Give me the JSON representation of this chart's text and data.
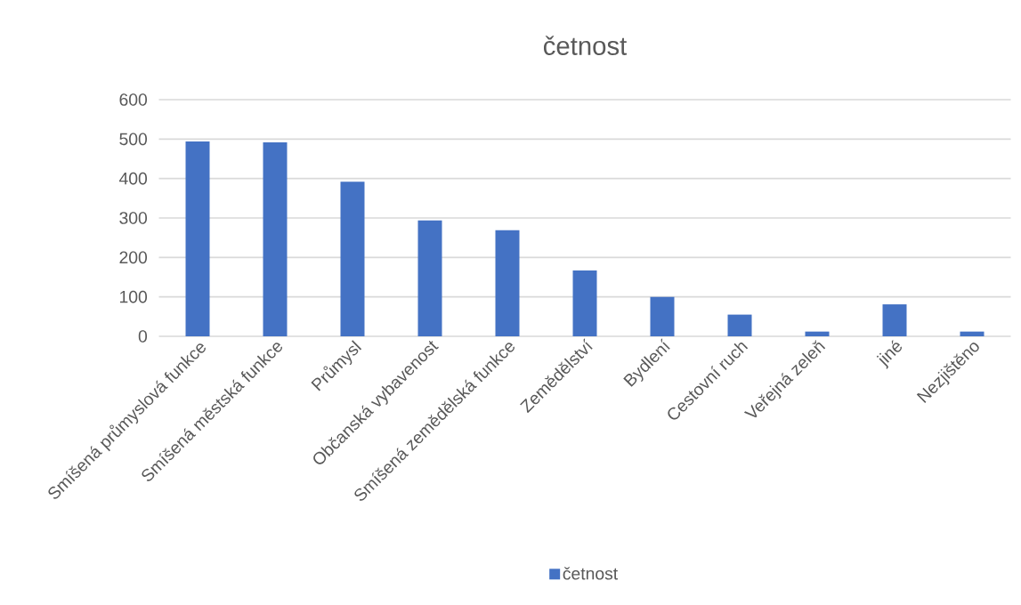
{
  "chart_data": {
    "type": "bar",
    "title": "četnost",
    "categories": [
      "Smíšená průmyslová funkce",
      "Smíšená městská funkce",
      "Průmysl",
      "Občanská vybavenost",
      "Smíšená zemědělská funkce",
      "Zemědělství",
      "Bydlení",
      "Cestovní ruch",
      "Veřejná zeleň",
      "jiné",
      "Nezjištěno"
    ],
    "series": [
      {
        "name": "četnost",
        "color": "#4472c4",
        "values": [
          494,
          492,
          392,
          294,
          269,
          167,
          100,
          55,
          12,
          81,
          12
        ]
      }
    ],
    "ylim": [
      0,
      600
    ],
    "yticks": [
      0,
      100,
      200,
      300,
      400,
      500,
      600
    ],
    "grid": "y",
    "legend": "bottom"
  }
}
